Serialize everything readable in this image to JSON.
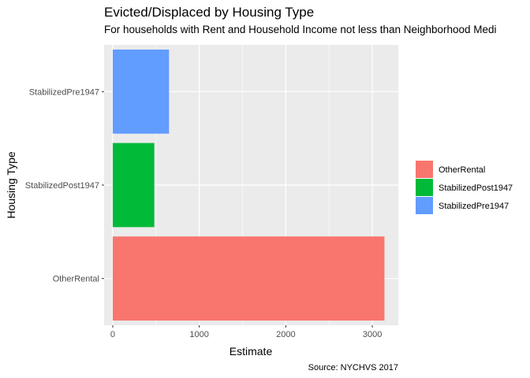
{
  "chart_data": {
    "type": "bar",
    "orientation": "horizontal",
    "title": "Evicted/Displaced by Housing Type",
    "subtitle": "For households with Rent and Household Income not less than Neighborhood Medi",
    "xlabel": "Estimate",
    "ylabel": "Housing Type",
    "caption": "Source: NYCHVS 2017",
    "categories": [
      "OtherRental",
      "StabilizedPost1947",
      "StabilizedPre1947"
    ],
    "values": [
      3140,
      480,
      650
    ],
    "colors": [
      "#F8766D",
      "#00BA38",
      "#619CFF"
    ],
    "xlim": [
      -100,
      3300
    ],
    "xticks": [
      0,
      1000,
      2000,
      3000
    ],
    "xtick_labels": [
      "0",
      "1000",
      "2000",
      "3000"
    ],
    "grid": true,
    "legend": {
      "placement": "right",
      "entries": [
        "OtherRental",
        "StabilizedPost1947",
        "StabilizedPre1947"
      ]
    }
  }
}
